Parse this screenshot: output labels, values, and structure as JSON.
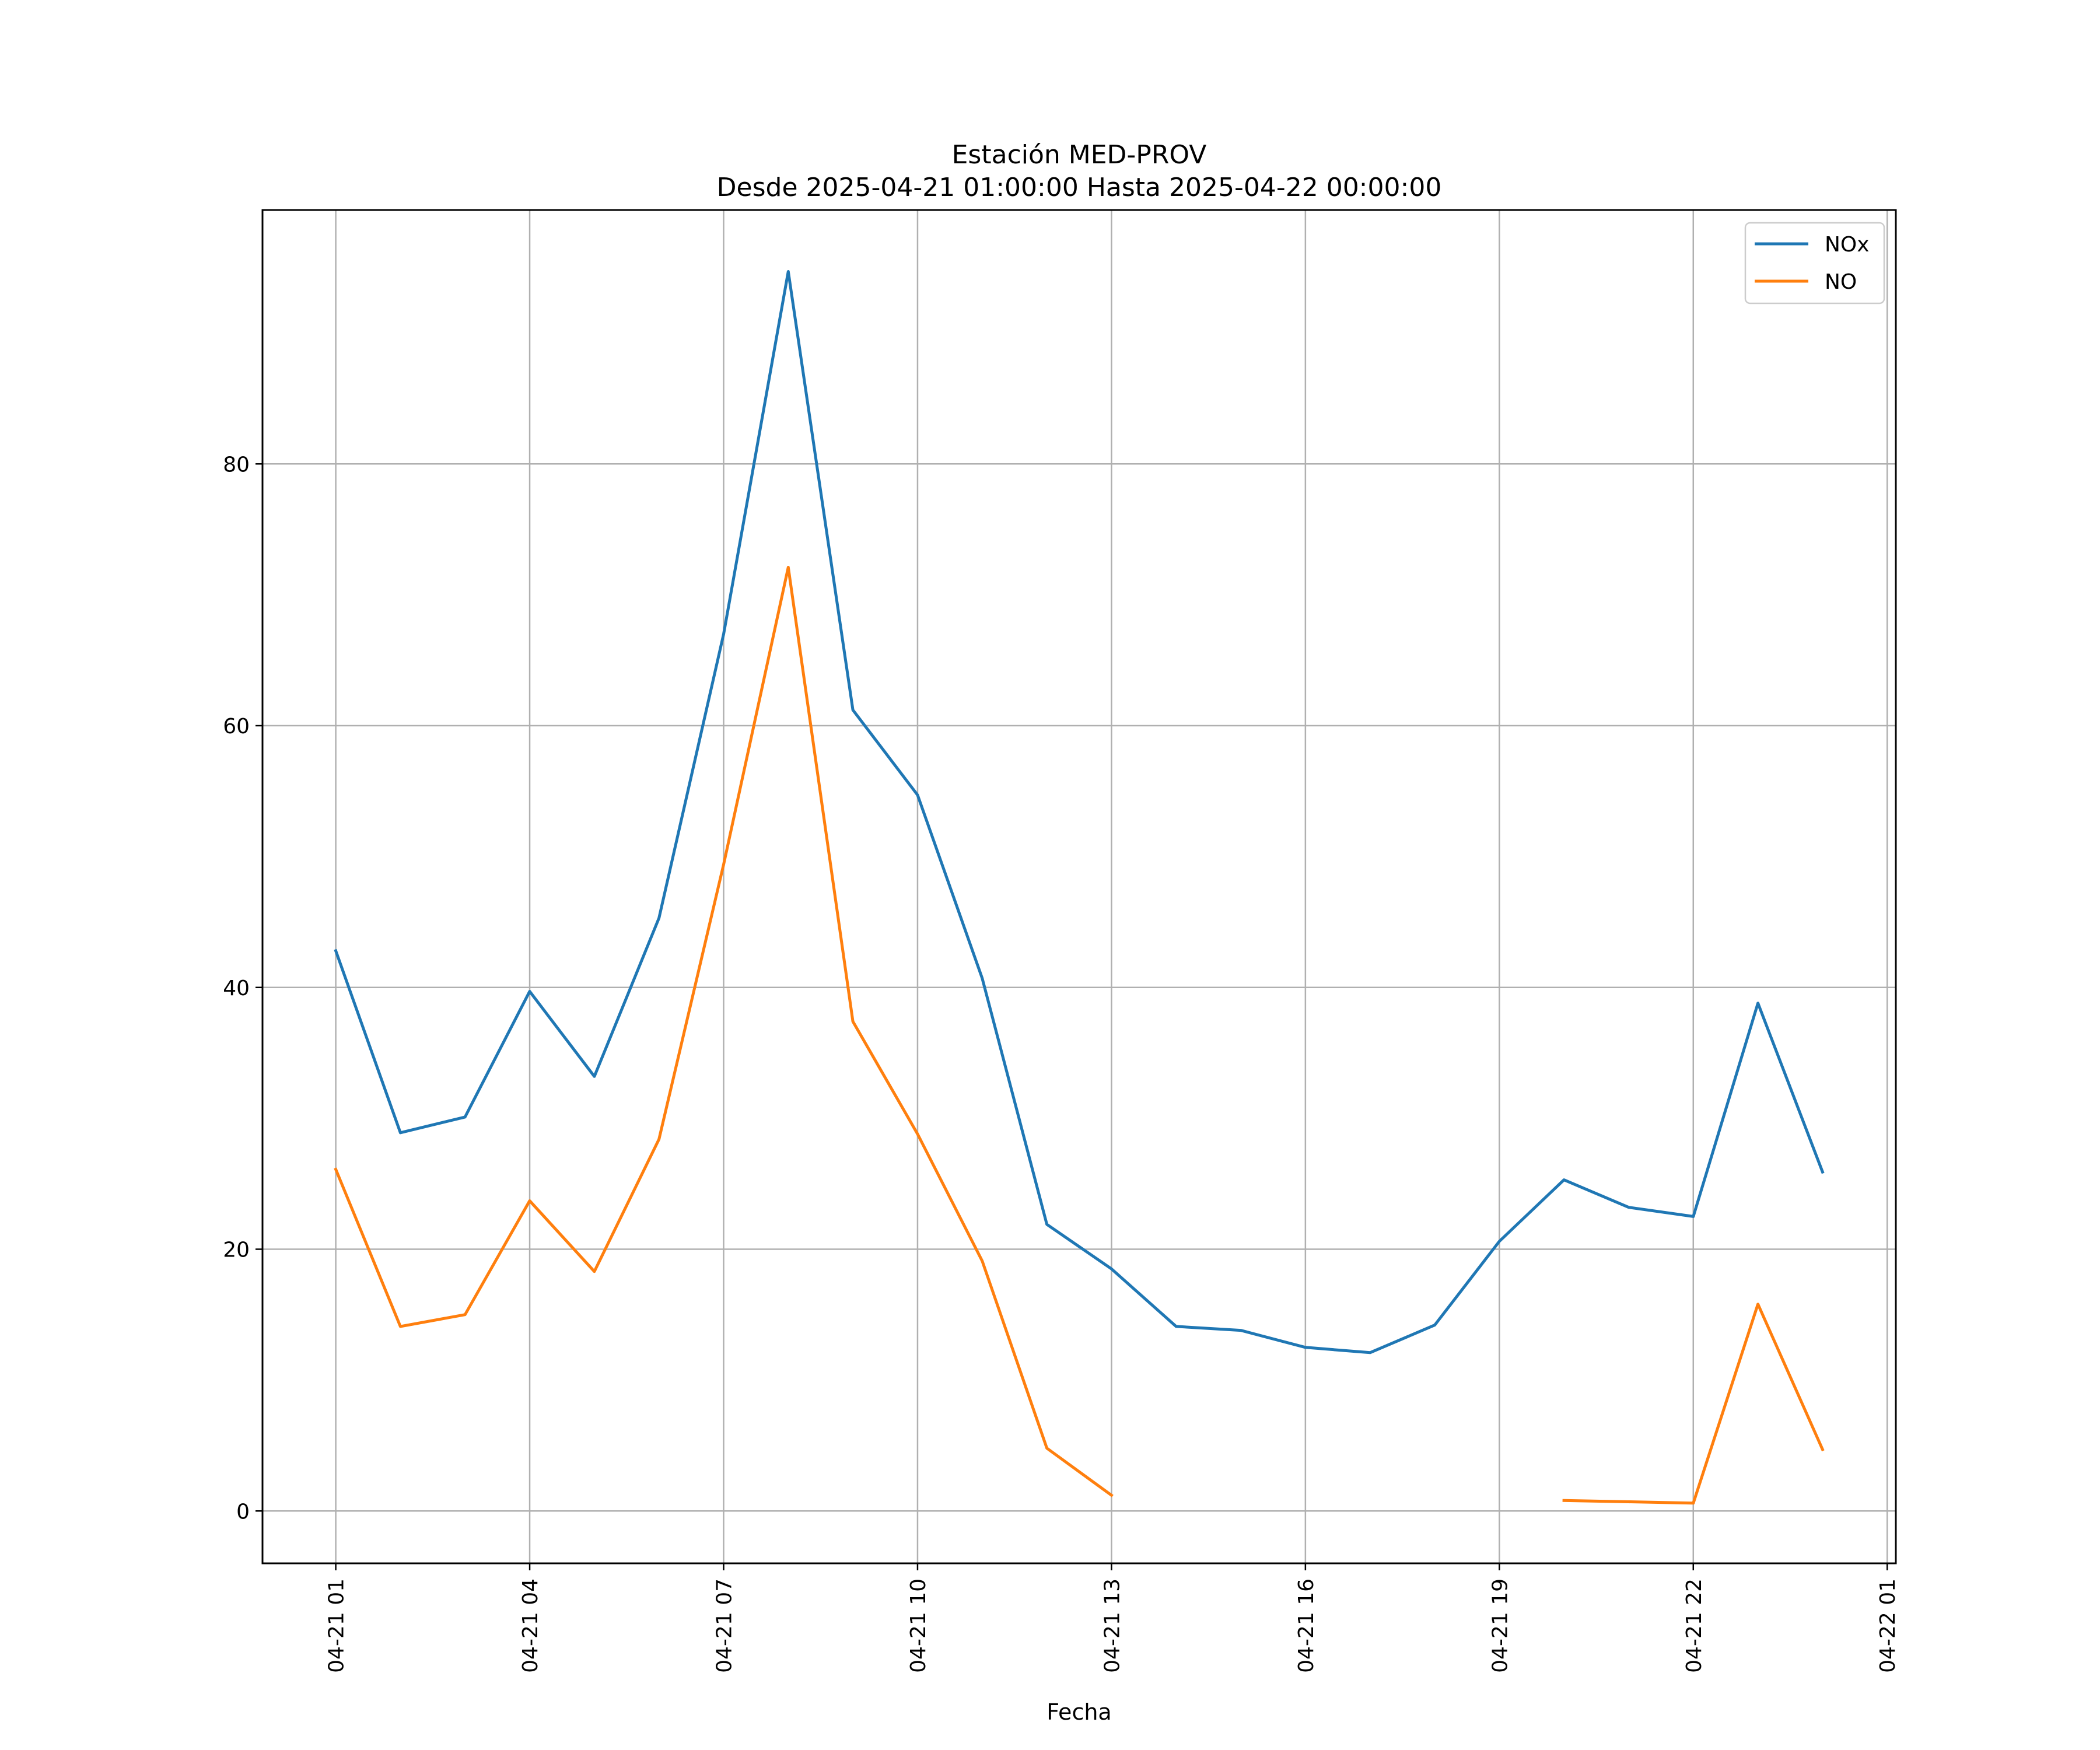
{
  "chart_data": {
    "type": "line",
    "title": "Estación MED-PROV",
    "subtitle": "Desde 2025-04-21 01:00:00 Hasta 2025-04-22 00:00:00",
    "xlabel": "Fecha",
    "ylabel": "",
    "x_tick_labels": [
      "04-21 01",
      "04-21 04",
      "04-21 07",
      "04-21 10",
      "04-21 13",
      "04-21 16",
      "04-21 19",
      "04-21 22",
      "04-22 01"
    ],
    "y_ticks": [
      0,
      20,
      40,
      60,
      80
    ],
    "xlim": [
      "2025-04-20 23:52",
      "2025-04-22 01:08"
    ],
    "ylim": [
      -4,
      99.4
    ],
    "grid": true,
    "legend_position": "top-right",
    "x": [
      "2025-04-21 01:00",
      "2025-04-21 02:00",
      "2025-04-21 03:00",
      "2025-04-21 04:00",
      "2025-04-21 05:00",
      "2025-04-21 06:00",
      "2025-04-21 07:00",
      "2025-04-21 08:00",
      "2025-04-21 09:00",
      "2025-04-21 10:00",
      "2025-04-21 11:00",
      "2025-04-21 12:00",
      "2025-04-21 13:00",
      "2025-04-21 14:00",
      "2025-04-21 15:00",
      "2025-04-21 16:00",
      "2025-04-21 17:00",
      "2025-04-21 18:00",
      "2025-04-21 19:00",
      "2025-04-21 20:00",
      "2025-04-21 21:00",
      "2025-04-21 22:00",
      "2025-04-21 23:00",
      "2025-04-22 00:00"
    ],
    "series": [
      {
        "name": "NOx",
        "color": "#1f77b4",
        "values": [
          42.8,
          28.9,
          30.1,
          39.7,
          33.2,
          45.3,
          67.0,
          94.7,
          61.2,
          54.7,
          40.7,
          21.9,
          18.5,
          14.1,
          13.8,
          12.5,
          12.1,
          14.2,
          20.6,
          25.3,
          23.2,
          22.5,
          38.8,
          25.9
        ]
      },
      {
        "name": "NO",
        "color": "#ff7f0e",
        "values": [
          26.1,
          14.1,
          15.0,
          23.7,
          18.3,
          28.4,
          49.4,
          72.1,
          37.4,
          28.8,
          19.1,
          4.8,
          1.2,
          null,
          null,
          null,
          null,
          null,
          null,
          0.8,
          0.7,
          0.6,
          15.8,
          4.7
        ]
      }
    ]
  }
}
